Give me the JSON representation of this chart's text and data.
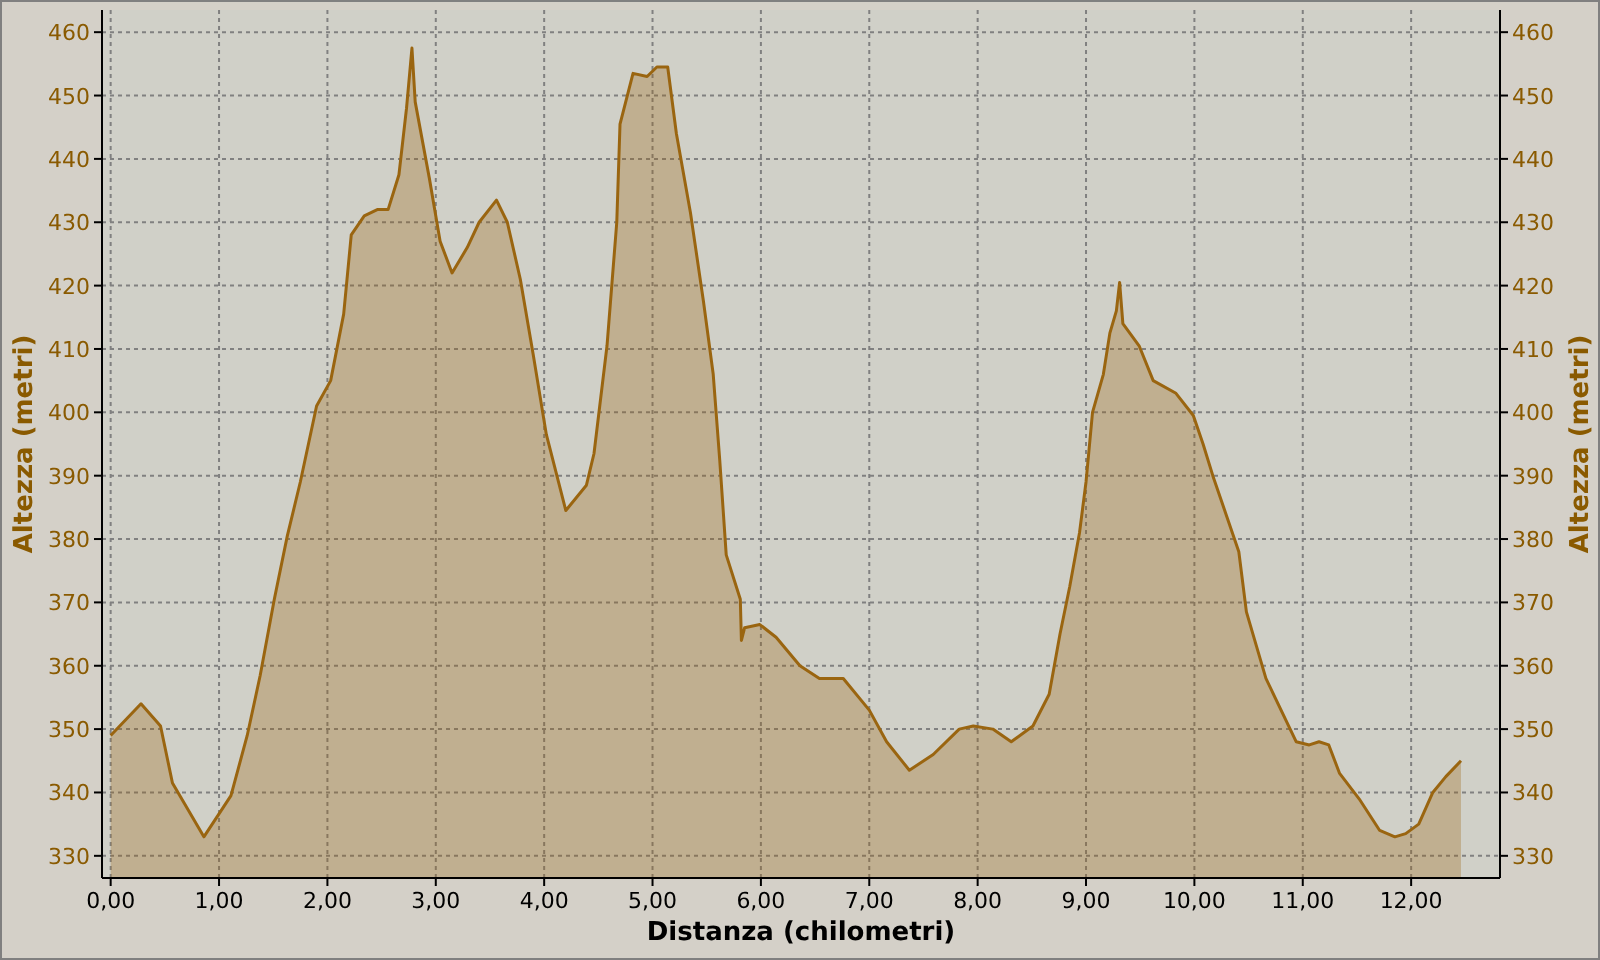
{
  "chart_data": {
    "type": "area",
    "xlabel": "Distanza (chilometri)",
    "ylabel": "Altezza (metri)",
    "y2label": "Altezza (metri)",
    "xlim": [
      -0.08,
      12.82
    ],
    "ylim": [
      326.5,
      463.5
    ],
    "y2lim": [
      326.5,
      463.5
    ],
    "xticks": [
      {
        "value": 0,
        "label": "0,00"
      },
      {
        "value": 1,
        "label": "1,00"
      },
      {
        "value": 2,
        "label": "2,00"
      },
      {
        "value": 3,
        "label": "3,00"
      },
      {
        "value": 4,
        "label": "4,00"
      },
      {
        "value": 5,
        "label": "5,00"
      },
      {
        "value": 6,
        "label": "6,00"
      },
      {
        "value": 7,
        "label": "7,00"
      },
      {
        "value": 8,
        "label": "8,00"
      },
      {
        "value": 9,
        "label": "9,00"
      },
      {
        "value": 10,
        "label": "10,00"
      },
      {
        "value": 11,
        "label": "11,00"
      },
      {
        "value": 12,
        "label": "12,00"
      }
    ],
    "yticks": [
      330,
      340,
      350,
      360,
      370,
      380,
      390,
      400,
      410,
      420,
      430,
      440,
      450,
      460
    ],
    "y2ticks": [
      330,
      340,
      350,
      360,
      370,
      380,
      390,
      400,
      410,
      420,
      430,
      440,
      450,
      460
    ],
    "grid": true,
    "series": [
      {
        "color": "#9a6510",
        "x": [
          0,
          0.28,
          0.46,
          0.57,
          0.86,
          1.11,
          1.26,
          1.38,
          1.51,
          1.63,
          1.75,
          1.9,
          2.03,
          2.15,
          2.22,
          2.34,
          2.46,
          2.56,
          2.66,
          2.73,
          2.78,
          2.81,
          2.94,
          3.04,
          3.15,
          3.29,
          3.4,
          3.56,
          3.66,
          3.78,
          3.9,
          4.02,
          4.2,
          4.39,
          4.46,
          4.58,
          4.67,
          4.7,
          4.82,
          4.95,
          5.04,
          5.14,
          5.22,
          5.35,
          5.47,
          5.56,
          5.62,
          5.68,
          5.81,
          5.82,
          5.85,
          5.99,
          6.14,
          6.36,
          6.54,
          6.76,
          7,
          7.16,
          7.37,
          7.59,
          7.83,
          7.96,
          8.14,
          8.31,
          8.51,
          8.66,
          8.76,
          8.85,
          8.94,
          9,
          9.06,
          9.16,
          9.22,
          9.28,
          9.31,
          9.34,
          9.49,
          9.62,
          9.83,
          9.99,
          10.08,
          10.17,
          10.29,
          10.41,
          10.48,
          10.66,
          10.94,
          11.06,
          11.15,
          11.24,
          11.34,
          11.52,
          11.71,
          11.85,
          11.95,
          12.07,
          12.2,
          12.32,
          12.46
        ],
        "values": [
          349,
          354,
          350.5,
          341.5,
          333,
          339.5,
          349,
          358.5,
          370.5,
          380.5,
          389,
          401,
          405,
          415.5,
          428,
          431,
          432,
          432,
          437.5,
          448,
          457.5,
          449,
          437,
          427,
          422,
          426,
          430,
          433.5,
          430,
          421,
          409,
          396.5,
          384.5,
          388.5,
          393.5,
          410.5,
          430,
          445.5,
          453.5,
          453,
          454.5,
          454.5,
          444,
          431.5,
          417.5,
          406,
          392.5,
          377.5,
          370.5,
          364,
          366,
          366.5,
          364.5,
          360,
          358,
          358,
          353,
          348,
          343.5,
          346,
          350,
          350.5,
          350,
          348,
          350.5,
          355.5,
          365,
          372.5,
          381,
          389,
          400,
          406,
          412.5,
          416,
          420.5,
          414,
          410.5,
          405,
          403,
          399.5,
          395,
          390,
          384,
          378,
          368.5,
          358,
          348,
          347.5,
          348,
          347.5,
          343,
          339,
          334,
          333,
          333.5,
          335,
          340,
          342.5,
          345
        ]
      }
    ]
  }
}
